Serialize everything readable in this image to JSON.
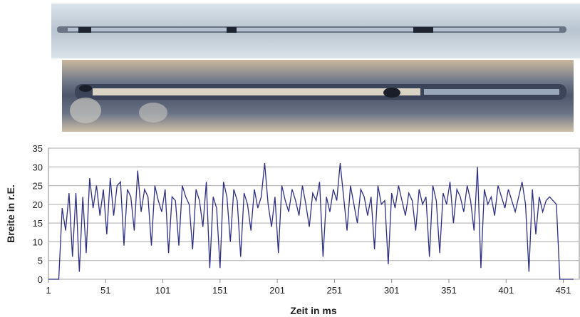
{
  "chart_data": {
    "type": "line",
    "ylabel": "Breite in r.E.",
    "xlabel": "Zeit in ms",
    "x": [
      1,
      4,
      7,
      10,
      13,
      16,
      19,
      22,
      25,
      28,
      31,
      34,
      37,
      40,
      43,
      46,
      49,
      52,
      55,
      58,
      61,
      64,
      67,
      70,
      73,
      76,
      79,
      82,
      85,
      88,
      91,
      94,
      97,
      100,
      103,
      106,
      109,
      112,
      115,
      118,
      121,
      124,
      127,
      130,
      133,
      136,
      139,
      142,
      145,
      148,
      151,
      154,
      157,
      160,
      163,
      166,
      169,
      172,
      175,
      178,
      181,
      184,
      187,
      190,
      193,
      196,
      199,
      202,
      205,
      208,
      211,
      214,
      217,
      220,
      223,
      226,
      229,
      232,
      235,
      238,
      241,
      244,
      247,
      250,
      253,
      256,
      259,
      262,
      265,
      268,
      271,
      274,
      277,
      280,
      283,
      286,
      289,
      292,
      295,
      298,
      301,
      304,
      307,
      310,
      313,
      316,
      319,
      322,
      325,
      328,
      331,
      334,
      337,
      340,
      343,
      346,
      349,
      352,
      355,
      358,
      361,
      364,
      367,
      370,
      373,
      376,
      379,
      382,
      385,
      388,
      391,
      394,
      397,
      400,
      403,
      406,
      409,
      412,
      415,
      418,
      421,
      424,
      427,
      430,
      433,
      436,
      439,
      442,
      445,
      448,
      451,
      454,
      457,
      460
    ],
    "series": [
      {
        "name": "Breite",
        "color": "#2e2e86",
        "values": [
          0,
          0,
          0,
          0,
          19,
          13,
          23,
          6,
          23,
          2,
          22,
          7,
          27,
          19,
          25,
          17,
          24,
          12,
          27,
          17,
          25,
          26,
          9,
          24,
          22,
          13,
          29,
          18,
          24,
          22,
          9,
          25,
          21,
          18,
          24,
          7,
          22,
          21,
          9,
          25,
          22,
          20,
          8,
          24,
          21,
          14,
          26,
          3,
          22,
          19,
          3,
          26,
          22,
          10,
          24,
          21,
          6,
          23,
          20,
          13,
          24,
          19,
          22,
          31,
          20,
          14,
          22,
          7,
          25,
          21,
          18,
          24,
          21,
          17,
          25,
          20,
          14,
          23,
          21,
          26,
          6,
          22,
          18,
          24,
          21,
          31,
          22,
          13,
          25,
          20,
          15,
          24,
          22,
          17,
          22,
          8,
          25,
          20,
          21,
          4,
          23,
          19,
          25,
          21,
          17,
          23,
          21,
          13,
          24,
          20,
          22,
          6,
          25,
          21,
          7,
          23,
          20,
          26,
          15,
          24,
          22,
          18,
          25,
          21,
          13,
          30,
          3,
          24,
          20,
          22,
          17,
          25,
          22,
          19,
          24,
          21,
          18,
          22,
          26,
          20,
          2,
          24,
          12,
          22,
          18,
          21,
          22,
          21,
          20,
          0,
          0,
          0,
          0,
          0
        ]
      }
    ],
    "xlim": [
      1,
      465
    ],
    "ylim": [
      0,
      35
    ],
    "xticks": [
      1,
      51,
      101,
      151,
      201,
      251,
      301,
      351,
      401,
      451
    ],
    "yticks": [
      0,
      5,
      10,
      15,
      20,
      25,
      30,
      35
    ],
    "grid": true
  }
}
